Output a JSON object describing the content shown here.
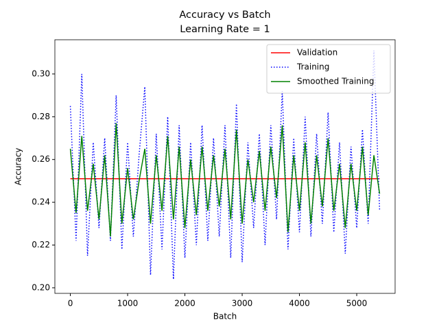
{
  "chart_data": {
    "type": "line",
    "title": "Accuracy vs Batch",
    "subtitle": "Learning Rate = 1",
    "x_label": "Batch",
    "y_label": "Accuracy",
    "xlim": [
      -270,
      5670
    ],
    "ylim": [
      0.1974,
      0.316
    ],
    "xticks": [
      0,
      1000,
      2000,
      3000,
      4000,
      5000
    ],
    "yticks": [
      {
        "value": 0.2,
        "label": "0.20"
      },
      0.22,
      0.24,
      0.26,
      0.28,
      {
        "value": 0.3,
        "label": "0.30"
      }
    ],
    "legend": "upper right",
    "series": [
      {
        "name": "Validation",
        "color": "#ff0000",
        "style": "solid",
        "x": [
          0,
          5400
        ],
        "values": [
          0.251,
          0.251
        ]
      },
      {
        "name": "Training",
        "color": "#0000ff",
        "style": "dotted",
        "x": [
          0,
          100,
          200,
          300,
          400,
          500,
          600,
          700,
          800,
          900,
          1000,
          1100,
          1200,
          1300,
          1400,
          1500,
          1600,
          1700,
          1800,
          1900,
          2000,
          2100,
          2200,
          2300,
          2400,
          2500,
          2600,
          2700,
          2800,
          2900,
          3000,
          3100,
          3200,
          3300,
          3400,
          3500,
          3600,
          3700,
          3800,
          3900,
          4000,
          4100,
          4200,
          4300,
          4400,
          4500,
          4600,
          4700,
          4800,
          4900,
          5000,
          5100,
          5200,
          5300,
          5400
        ],
        "values": [
          0.285,
          0.222,
          0.3,
          0.215,
          0.268,
          0.228,
          0.27,
          0.222,
          0.29,
          0.218,
          0.268,
          0.224,
          0.262,
          0.294,
          0.206,
          0.272,
          0.218,
          0.28,
          0.204,
          0.276,
          0.214,
          0.268,
          0.22,
          0.276,
          0.222,
          0.27,
          0.224,
          0.276,
          0.214,
          0.286,
          0.212,
          0.268,
          0.228,
          0.272,
          0.22,
          0.276,
          0.232,
          0.292,
          0.218,
          0.27,
          0.226,
          0.28,
          0.224,
          0.272,
          0.23,
          0.282,
          0.226,
          0.268,
          0.216,
          0.266,
          0.228,
          0.274,
          0.23,
          0.311,
          0.236
        ]
      },
      {
        "name": "Smoothed Training",
        "color": "#008000",
        "style": "solid",
        "x": [
          0,
          100,
          200,
          300,
          400,
          500,
          600,
          700,
          800,
          900,
          1000,
          1100,
          1200,
          1300,
          1400,
          1500,
          1600,
          1700,
          1800,
          1900,
          2000,
          2100,
          2200,
          2300,
          2400,
          2500,
          2600,
          2700,
          2800,
          2900,
          3000,
          3100,
          3200,
          3300,
          3400,
          3500,
          3600,
          3700,
          3800,
          3900,
          4000,
          4100,
          4200,
          4300,
          4400,
          4500,
          4600,
          4700,
          4800,
          4900,
          5000,
          5100,
          5200,
          5300,
          5400
        ],
        "values": [
          0.265,
          0.235,
          0.271,
          0.236,
          0.258,
          0.232,
          0.262,
          0.224,
          0.277,
          0.23,
          0.256,
          0.232,
          0.25,
          0.265,
          0.23,
          0.262,
          0.236,
          0.271,
          0.232,
          0.266,
          0.228,
          0.26,
          0.234,
          0.266,
          0.236,
          0.262,
          0.238,
          0.265,
          0.232,
          0.274,
          0.23,
          0.26,
          0.24,
          0.264,
          0.236,
          0.266,
          0.242,
          0.276,
          0.226,
          0.262,
          0.236,
          0.268,
          0.23,
          0.262,
          0.238,
          0.27,
          0.236,
          0.258,
          0.228,
          0.258,
          0.236,
          0.266,
          0.234,
          0.262,
          0.244
        ]
      }
    ]
  }
}
